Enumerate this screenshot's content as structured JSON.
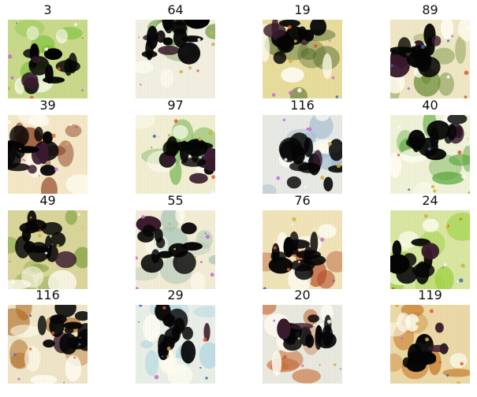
{
  "images": [
    {
      "label": "3",
      "tint": "#c9d98a",
      "accent": "#7cc23a",
      "dark": 0.45
    },
    {
      "label": "64",
      "tint": "#f1efe0",
      "accent": "#5a8f2e",
      "dark": 0.55
    },
    {
      "label": "19",
      "tint": "#e8dc9c",
      "accent": "#4f6b2c",
      "dark": 0.35
    },
    {
      "label": "89",
      "tint": "#eee6c4",
      "accent": "#6f8f3a",
      "dark": 0.5
    },
    {
      "label": "39",
      "tint": "#f4e7c6",
      "accent": "#8a3b1e",
      "dark": 0.6
    },
    {
      "label": "97",
      "tint": "#f1eed2",
      "accent": "#6fb24a",
      "dark": 0.5
    },
    {
      "label": "116",
      "tint": "#e6e9e4",
      "accent": "#9bb7cf",
      "dark": 0.45
    },
    {
      "label": "40",
      "tint": "#f0f2d8",
      "accent": "#5aa83c",
      "dark": 0.35
    },
    {
      "label": "49",
      "tint": "#d9d49a",
      "accent": "#7ea03a",
      "dark": 0.45
    },
    {
      "label": "55",
      "tint": "#f2ecd4",
      "accent": "#a8c6b9",
      "dark": 0.4
    },
    {
      "label": "76",
      "tint": "#efe3b7",
      "accent": "#b54a28",
      "dark": 0.5
    },
    {
      "label": "24",
      "tint": "#d8e6a2",
      "accent": "#9ad13b",
      "dark": 0.25
    },
    {
      "label": "116",
      "tint": "#efe4c6",
      "accent": "#b06a22",
      "dark": 0.45
    },
    {
      "label": "29",
      "tint": "#e9eee6",
      "accent": "#a9d2e1",
      "dark": 0.35
    },
    {
      "label": "20",
      "tint": "#e9e8de",
      "accent": "#c4642e",
      "dark": 0.55
    },
    {
      "label": "119",
      "tint": "#ead9a6",
      "accent": "#c97a2a",
      "dark": 0.4
    }
  ]
}
